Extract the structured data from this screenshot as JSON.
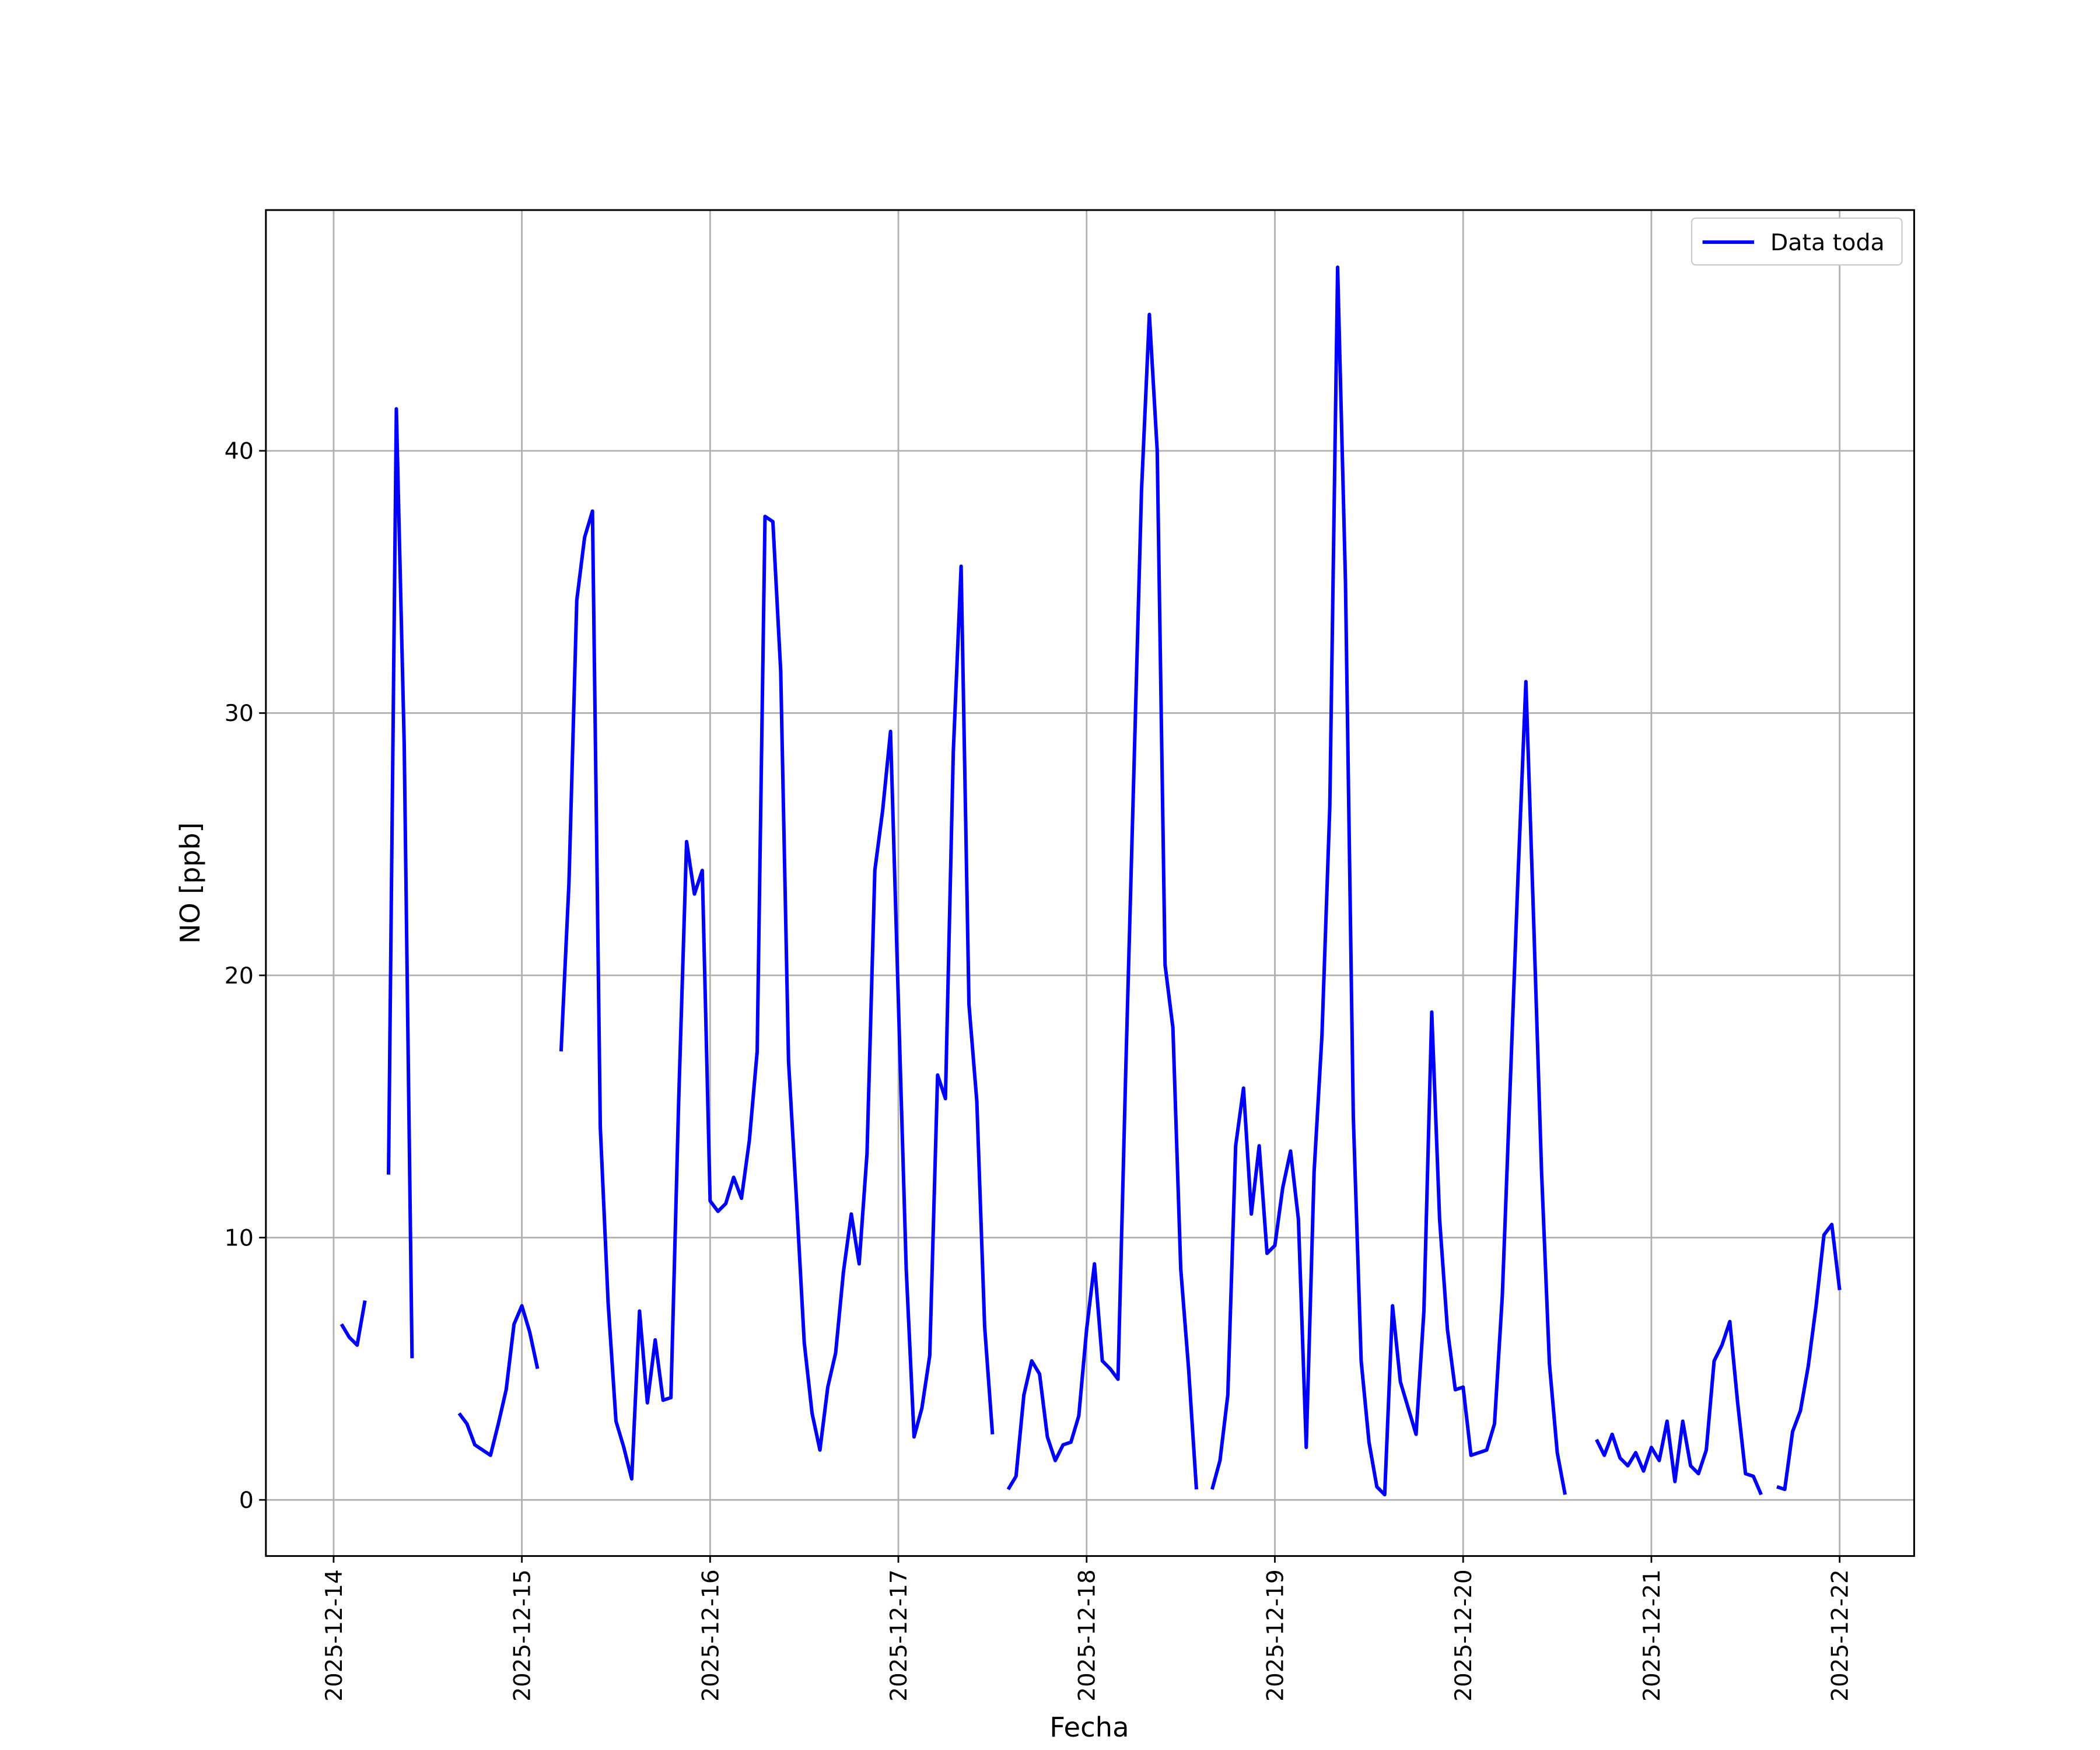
{
  "chart_data": {
    "type": "line",
    "xlabel": "Fecha",
    "ylabel": "NO [ppb]",
    "xlim": [
      "2025-12-13 15:22",
      "2025-12-22 09:30"
    ],
    "xticks": [
      "2025-12-14",
      "2025-12-15",
      "2025-12-16",
      "2025-12-17",
      "2025-12-18",
      "2025-12-19",
      "2025-12-20",
      "2025-12-21",
      "2025-12-22"
    ],
    "ylim": [
      -2.14,
      49.18
    ],
    "yticks": [
      0,
      10,
      20,
      30,
      40
    ],
    "grid": true,
    "legend": "upper right",
    "x": [
      "2025-12-14 01:00",
      "2025-12-14 02:00",
      "2025-12-14 03:00",
      "2025-12-14 04:00",
      "2025-12-14 05:00",
      "2025-12-14 07:00",
      "2025-12-14 08:00",
      "2025-12-14 09:00",
      "2025-12-14 10:00",
      "2025-12-14 11:00",
      "2025-12-14 16:00",
      "2025-12-14 17:00",
      "2025-12-14 18:00",
      "2025-12-14 19:00",
      "2025-12-14 20:00",
      "2025-12-14 21:00",
      "2025-12-14 22:00",
      "2025-12-14 23:00",
      "2025-12-15 00:00",
      "2025-12-15 01:00",
      "2025-12-15 02:00",
      "2025-12-15 03:00",
      "2025-12-15 05:00",
      "2025-12-15 06:00",
      "2025-12-15 07:00",
      "2025-12-15 08:00",
      "2025-12-15 09:00",
      "2025-12-15 10:00",
      "2025-12-15 11:00",
      "2025-12-15 12:00",
      "2025-12-15 13:00",
      "2025-12-15 14:00",
      "2025-12-15 15:00",
      "2025-12-15 16:00",
      "2025-12-15 17:00",
      "2025-12-15 18:00",
      "2025-12-15 19:00",
      "2025-12-15 20:00",
      "2025-12-15 21:00",
      "2025-12-15 22:00",
      "2025-12-15 23:00",
      "2025-12-16 00:00",
      "2025-12-16 01:00",
      "2025-12-16 02:00",
      "2025-12-16 03:00",
      "2025-12-16 04:00",
      "2025-12-16 05:00",
      "2025-12-16 06:00",
      "2025-12-16 07:00",
      "2025-12-16 08:00",
      "2025-12-16 09:00",
      "2025-12-16 10:00",
      "2025-12-16 11:00",
      "2025-12-16 12:00",
      "2025-12-16 13:00",
      "2025-12-16 14:00",
      "2025-12-16 15:00",
      "2025-12-16 16:00",
      "2025-12-16 17:00",
      "2025-12-16 18:00",
      "2025-12-16 19:00",
      "2025-12-16 20:00",
      "2025-12-16 21:00",
      "2025-12-16 22:00",
      "2025-12-16 23:00",
      "2025-12-17 00:00",
      "2025-12-17 01:00",
      "2025-12-17 02:00",
      "2025-12-17 03:00",
      "2025-12-17 04:00",
      "2025-12-17 05:00",
      "2025-12-17 06:00",
      "2025-12-17 07:00",
      "2025-12-17 08:00",
      "2025-12-17 09:00",
      "2025-12-17 10:00",
      "2025-12-17 11:00",
      "2025-12-17 12:00",
      "2025-12-17 13:00",
      "2025-12-17 14:00",
      "2025-12-17 15:00",
      "2025-12-17 16:00",
      "2025-12-17 17:00",
      "2025-12-17 18:00",
      "2025-12-17 19:00",
      "2025-12-17 20:00",
      "2025-12-17 21:00",
      "2025-12-17 22:00",
      "2025-12-17 23:00",
      "2025-12-18 00:00",
      "2025-12-18 01:00",
      "2025-12-18 02:00",
      "2025-12-18 03:00",
      "2025-12-18 04:00",
      "2025-12-18 05:00",
      "2025-12-18 06:00",
      "2025-12-18 07:00",
      "2025-12-18 08:00",
      "2025-12-18 09:00",
      "2025-12-18 10:00",
      "2025-12-18 11:00",
      "2025-12-18 12:00",
      "2025-12-18 13:00",
      "2025-12-18 14:00",
      "2025-12-18 15:00",
      "2025-12-18 16:00",
      "2025-12-18 17:00",
      "2025-12-18 18:00",
      "2025-12-18 19:00",
      "2025-12-18 20:00",
      "2025-12-18 21:00",
      "2025-12-18 22:00",
      "2025-12-18 23:00",
      "2025-12-19 00:00",
      "2025-12-19 01:00",
      "2025-12-19 02:00",
      "2025-12-19 03:00",
      "2025-12-19 04:00",
      "2025-12-19 05:00",
      "2025-12-19 06:00",
      "2025-12-19 07:00",
      "2025-12-19 08:00",
      "2025-12-19 09:00",
      "2025-12-19 10:00",
      "2025-12-19 11:00",
      "2025-12-19 12:00",
      "2025-12-19 13:00",
      "2025-12-19 14:00",
      "2025-12-19 15:00",
      "2025-12-19 16:00",
      "2025-12-19 17:00",
      "2025-12-19 18:00",
      "2025-12-19 19:00",
      "2025-12-19 20:00",
      "2025-12-19 21:00",
      "2025-12-19 22:00",
      "2025-12-19 23:00",
      "2025-12-20 00:00",
      "2025-12-20 01:00",
      "2025-12-20 02:00",
      "2025-12-20 03:00",
      "2025-12-20 04:00",
      "2025-12-20 05:00",
      "2025-12-20 06:00",
      "2025-12-20 07:00",
      "2025-12-20 08:00",
      "2025-12-20 09:00",
      "2025-12-20 10:00",
      "2025-12-20 11:00",
      "2025-12-20 12:00",
      "2025-12-20 13:00",
      "2025-12-20 14:00",
      "2025-12-20 17:00",
      "2025-12-20 18:00",
      "2025-12-20 19:00",
      "2025-12-20 20:00",
      "2025-12-20 21:00",
      "2025-12-20 22:00",
      "2025-12-20 23:00",
      "2025-12-21 00:00",
      "2025-12-21 01:00",
      "2025-12-21 02:00",
      "2025-12-21 03:00",
      "2025-12-21 04:00",
      "2025-12-21 05:00",
      "2025-12-21 06:00",
      "2025-12-21 07:00",
      "2025-12-21 08:00",
      "2025-12-21 09:00",
      "2025-12-21 10:00",
      "2025-12-21 11:00",
      "2025-12-21 12:00",
      "2025-12-21 13:00",
      "2025-12-21 14:00",
      "2025-12-21 15:00",
      "2025-12-21 16:00",
      "2025-12-21 17:00",
      "2025-12-21 18:00",
      "2025-12-21 19:00",
      "2025-12-21 20:00",
      "2025-12-21 21:00",
      "2025-12-21 22:00",
      "2025-12-21 23:00",
      "2025-12-22 00:00"
    ],
    "series": [
      {
        "name": "Data toda",
        "color": "#0000ff",
        "values": [
          6.7,
          6.2,
          5.9,
          7.6,
          null,
          12.4,
          41.6,
          28.8,
          5.4,
          null,
          3.3,
          2.9,
          2.1,
          1.9,
          1.7,
          2.9,
          4.2,
          6.7,
          7.4,
          6.4,
          5.0,
          null,
          17.1,
          23.5,
          34.3,
          36.7,
          37.7,
          14.2,
          7.5,
          3.0,
          2.0,
          0.8,
          7.2,
          3.7,
          6.1,
          3.8,
          3.9,
          15.3,
          25.1,
          23.1,
          24.0,
          11.4,
          11.0,
          11.3,
          12.3,
          11.5,
          13.7,
          17.1,
          37.5,
          37.3,
          31.6,
          16.7,
          11.5,
          6.0,
          3.3,
          1.9,
          4.3,
          5.6,
          8.7,
          10.9,
          9.0,
          13.2,
          24.0,
          26.3,
          29.3,
          19.0,
          8.8,
          2.4,
          3.5,
          5.5,
          16.2,
          15.3,
          28.5,
          35.6,
          18.9,
          15.2,
          6.6,
          2.5,
          null,
          0.4,
          0.9,
          4.0,
          5.3,
          4.8,
          2.4,
          1.5,
          2.1,
          2.2,
          3.2,
          6.5,
          9.0,
          5.3,
          5.0,
          4.6,
          16.5,
          27.5,
          38.5,
          45.2,
          40.0,
          20.4,
          18.0,
          8.8,
          5.0,
          0.4,
          null,
          0.4,
          1.5,
          4.0,
          13.5,
          15.7,
          10.9,
          13.5,
          9.4,
          9.7,
          11.9,
          13.3,
          10.7,
          2.0,
          12.5,
          17.7,
          26.4,
          47.0,
          35.0,
          14.6,
          5.3,
          2.2,
          0.5,
          0.2,
          7.4,
          4.5,
          3.5,
          2.5,
          7.2,
          18.6,
          10.7,
          6.5,
          4.2,
          4.3,
          1.7,
          1.8,
          1.9,
          2.9,
          7.8,
          15.8,
          23.8,
          31.2,
          22.0,
          12.5,
          5.2,
          1.8,
          0.2,
          null,
          2.3,
          1.7,
          2.5,
          1.6,
          1.3,
          1.8,
          1.1,
          2.0,
          1.5,
          3.0,
          0.7,
          3.0,
          1.3,
          1.0,
          1.9,
          5.3,
          5.9,
          6.8,
          3.7,
          1.0,
          0.9,
          0.2,
          null,
          0.5,
          0.4,
          2.6,
          3.4,
          5.1,
          7.4,
          10.1,
          10.5,
          8.0
        ]
      }
    ]
  }
}
